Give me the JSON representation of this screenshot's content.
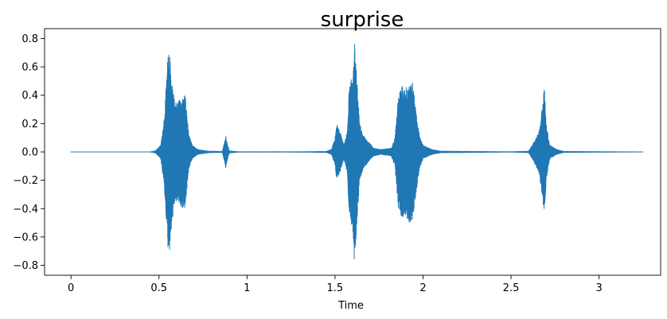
{
  "chart_data": {
    "type": "waveform",
    "title": "surprise",
    "xlabel": "Time",
    "ylabel": "",
    "xlim": [
      -0.15,
      3.35
    ],
    "ylim": [
      -0.87,
      0.87
    ],
    "duration": 3.25,
    "xticks": [
      {
        "value": 0,
        "label": "0"
      },
      {
        "value": 0.5,
        "label": "0.5"
      },
      {
        "value": 1,
        "label": "1"
      },
      {
        "value": 1.5,
        "label": "1.5"
      },
      {
        "value": 2,
        "label": "2"
      },
      {
        "value": 2.5,
        "label": "2.5"
      },
      {
        "value": 3,
        "label": "3"
      }
    ],
    "yticks": [
      {
        "value": 0.8,
        "label": "0.8"
      },
      {
        "value": 0.6,
        "label": "0.6"
      },
      {
        "value": 0.4,
        "label": "0.4"
      },
      {
        "value": 0.2,
        "label": "0.2"
      },
      {
        "value": 0.0,
        "label": "0.0"
      },
      {
        "value": -0.2,
        "label": "−0.2"
      },
      {
        "value": -0.4,
        "label": "−0.4"
      },
      {
        "value": -0.6,
        "label": "−0.6"
      },
      {
        "value": -0.8,
        "label": "−0.8"
      }
    ],
    "envelope": [
      [
        0.0,
        0.003
      ],
      [
        0.45,
        0.003
      ],
      [
        0.48,
        0.01
      ],
      [
        0.51,
        0.05
      ],
      [
        0.53,
        0.25
      ],
      [
        0.54,
        0.45
      ],
      [
        0.55,
        0.68
      ],
      [
        0.56,
        0.7
      ],
      [
        0.57,
        0.55
      ],
      [
        0.59,
        0.35
      ],
      [
        0.61,
        0.36
      ],
      [
        0.63,
        0.4
      ],
      [
        0.65,
        0.4
      ],
      [
        0.66,
        0.25
      ],
      [
        0.67,
        0.12
      ],
      [
        0.69,
        0.05
      ],
      [
        0.72,
        0.02
      ],
      [
        0.78,
        0.008
      ],
      [
        0.86,
        0.006
      ],
      [
        0.87,
        0.06
      ],
      [
        0.88,
        0.12
      ],
      [
        0.89,
        0.05
      ],
      [
        0.9,
        0.01
      ],
      [
        0.95,
        0.004
      ],
      [
        1.3,
        0.004
      ],
      [
        1.45,
        0.006
      ],
      [
        1.48,
        0.02
      ],
      [
        1.5,
        0.1
      ],
      [
        1.51,
        0.2
      ],
      [
        1.53,
        0.14
      ],
      [
        1.55,
        0.05
      ],
      [
        1.57,
        0.15
      ],
      [
        1.58,
        0.45
      ],
      [
        1.59,
        0.5
      ],
      [
        1.6,
        0.55
      ],
      [
        1.61,
        0.8
      ],
      [
        1.62,
        0.6
      ],
      [
        1.63,
        0.4
      ],
      [
        1.64,
        0.2
      ],
      [
        1.66,
        0.12
      ],
      [
        1.72,
        0.03
      ],
      [
        1.76,
        0.02
      ],
      [
        1.82,
        0.03
      ],
      [
        1.84,
        0.1
      ],
      [
        1.86,
        0.4
      ],
      [
        1.88,
        0.47
      ],
      [
        1.9,
        0.45
      ],
      [
        1.92,
        0.5
      ],
      [
        1.94,
        0.5
      ],
      [
        1.96,
        0.3
      ],
      [
        1.98,
        0.12
      ],
      [
        2.0,
        0.05
      ],
      [
        2.05,
        0.02
      ],
      [
        2.1,
        0.008
      ],
      [
        2.5,
        0.004
      ],
      [
        2.6,
        0.008
      ],
      [
        2.62,
        0.05
      ],
      [
        2.64,
        0.1
      ],
      [
        2.66,
        0.15
      ],
      [
        2.68,
        0.35
      ],
      [
        2.69,
        0.47
      ],
      [
        2.7,
        0.2
      ],
      [
        2.72,
        0.05
      ],
      [
        2.76,
        0.02
      ],
      [
        2.8,
        0.006
      ],
      [
        3.25,
        0.003
      ]
    ],
    "line_color": "#1f77b4",
    "grid": false
  }
}
